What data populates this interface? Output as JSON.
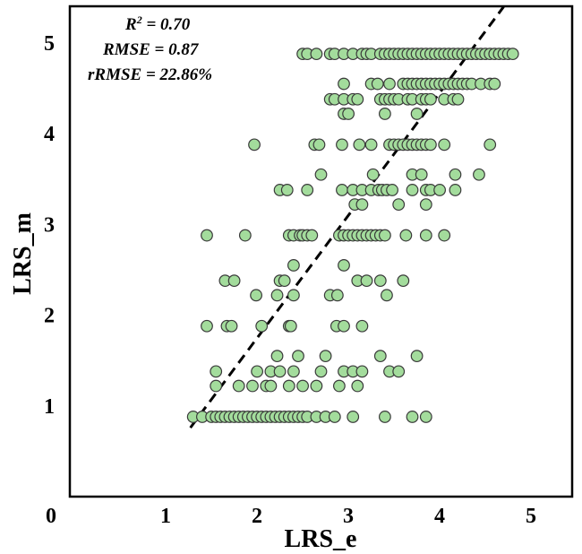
{
  "chart_data": {
    "type": "scatter",
    "title": "",
    "xlabel": "LRS_e",
    "ylabel": "LRS_m",
    "xlim": [
      0,
      5.5
    ],
    "ylim": [
      0,
      5.4
    ],
    "x_ticks": [
      "0",
      "1",
      "2",
      "3",
      "4",
      "5"
    ],
    "y_ticks": [
      "1",
      "2",
      "3",
      "4",
      "5"
    ],
    "grid": false,
    "legend": "none",
    "marker_fill": "#a3dc9c",
    "marker_edge": "#3a3a3a",
    "line_color": "#000000",
    "annotations": {
      "r2_prefix": "R",
      "r2_sup": "2",
      "r2_rest": " = 0.70",
      "rmse": "RMSE = 0.87",
      "rrmse": "rRMSE = 22.86%"
    },
    "fit_line": {
      "x": [
        1.32,
        4.75
      ],
      "y": [
        0.76,
        5.4
      ]
    },
    "points": [
      {
        "y": 0.88,
        "x": [
          1.35,
          1.45,
          1.55,
          1.6,
          1.65,
          1.7,
          1.75,
          1.8,
          1.85,
          1.9,
          1.95,
          2.0,
          2.05,
          2.1,
          2.15,
          2.2,
          2.25,
          2.3,
          2.35,
          2.4,
          2.45,
          2.5,
          2.55,
          2.6,
          2.7,
          2.8,
          2.9,
          3.1,
          3.45,
          3.75,
          3.9
        ]
      },
      {
        "y": 1.22,
        "x": [
          1.6,
          1.85,
          2.0,
          2.15,
          2.2,
          2.4,
          2.55,
          2.7,
          2.95,
          3.15
        ]
      },
      {
        "y": 1.38,
        "x": [
          1.6,
          2.05,
          2.2,
          2.3,
          2.45,
          2.75,
          3.0,
          3.1,
          3.2,
          3.5,
          3.6
        ]
      },
      {
        "y": 1.55,
        "x": [
          2.27,
          2.5,
          2.8,
          3.4,
          3.8
        ]
      },
      {
        "y": 1.88,
        "x": [
          1.5,
          1.72,
          1.77,
          2.1,
          2.4,
          2.42,
          2.92,
          3.0,
          3.2
        ]
      },
      {
        "y": 2.22,
        "x": [
          2.04,
          2.27,
          2.45,
          2.85,
          2.93,
          3.47
        ]
      },
      {
        "y": 2.38,
        "x": [
          1.7,
          1.8,
          2.3,
          2.35,
          3.15,
          3.25,
          3.4,
          3.65
        ]
      },
      {
        "y": 2.55,
        "x": [
          2.45,
          3.0
        ]
      },
      {
        "y": 2.88,
        "x": [
          1.5,
          1.92,
          2.4,
          2.45,
          2.52,
          2.55,
          2.6,
          2.65,
          2.95,
          3.0,
          3.05,
          3.1,
          3.15,
          3.2,
          3.25,
          3.3,
          3.35,
          3.4,
          3.45,
          3.68,
          3.9,
          4.1
        ]
      },
      {
        "y": 3.22,
        "x": [
          3.12,
          3.2,
          3.6,
          3.9
        ]
      },
      {
        "y": 3.38,
        "x": [
          2.3,
          2.38,
          2.6,
          2.98,
          3.1,
          3.2,
          3.3,
          3.38,
          3.42,
          3.47,
          3.53,
          3.75,
          3.9,
          3.95,
          4.05,
          4.22
        ]
      },
      {
        "y": 3.55,
        "x": [
          2.75,
          3.32,
          3.75,
          3.85,
          4.22,
          4.48
        ]
      },
      {
        "y": 3.88,
        "x": [
          2.02,
          2.68,
          2.73,
          2.98,
          3.17,
          3.3,
          3.5,
          3.55,
          3.6,
          3.65,
          3.7,
          3.75,
          3.8,
          3.85,
          3.9,
          3.95,
          4.1,
          4.6
        ]
      },
      {
        "y": 4.22,
        "x": [
          3.0,
          3.05,
          3.45,
          3.8
        ]
      },
      {
        "y": 4.38,
        "x": [
          2.85,
          2.9,
          3.0,
          3.1,
          3.15,
          3.4,
          3.45,
          3.5,
          3.55,
          3.6,
          3.7,
          3.75,
          3.85,
          3.9,
          3.95,
          4.1,
          4.2,
          4.25
        ]
      },
      {
        "y": 4.55,
        "x": [
          3.0,
          3.3,
          3.37,
          3.5,
          3.65,
          3.7,
          3.75,
          3.8,
          3.85,
          3.9,
          3.95,
          4.0,
          4.05,
          4.1,
          4.15,
          4.2,
          4.25,
          4.3,
          4.35,
          4.4,
          4.5,
          4.6,
          4.65
        ]
      },
      {
        "y": 4.88,
        "x": [
          2.55,
          2.6,
          2.7,
          2.85,
          2.9,
          3.0,
          3.1,
          3.2,
          3.25,
          3.3,
          3.4,
          3.45,
          3.5,
          3.55,
          3.6,
          3.65,
          3.7,
          3.75,
          3.8,
          3.85,
          3.9,
          3.95,
          4.0,
          4.05,
          4.1,
          4.15,
          4.2,
          4.25,
          4.3,
          4.35,
          4.4,
          4.45,
          4.5,
          4.55,
          4.6,
          4.65,
          4.7,
          4.75,
          4.8,
          4.85
        ]
      }
    ]
  }
}
